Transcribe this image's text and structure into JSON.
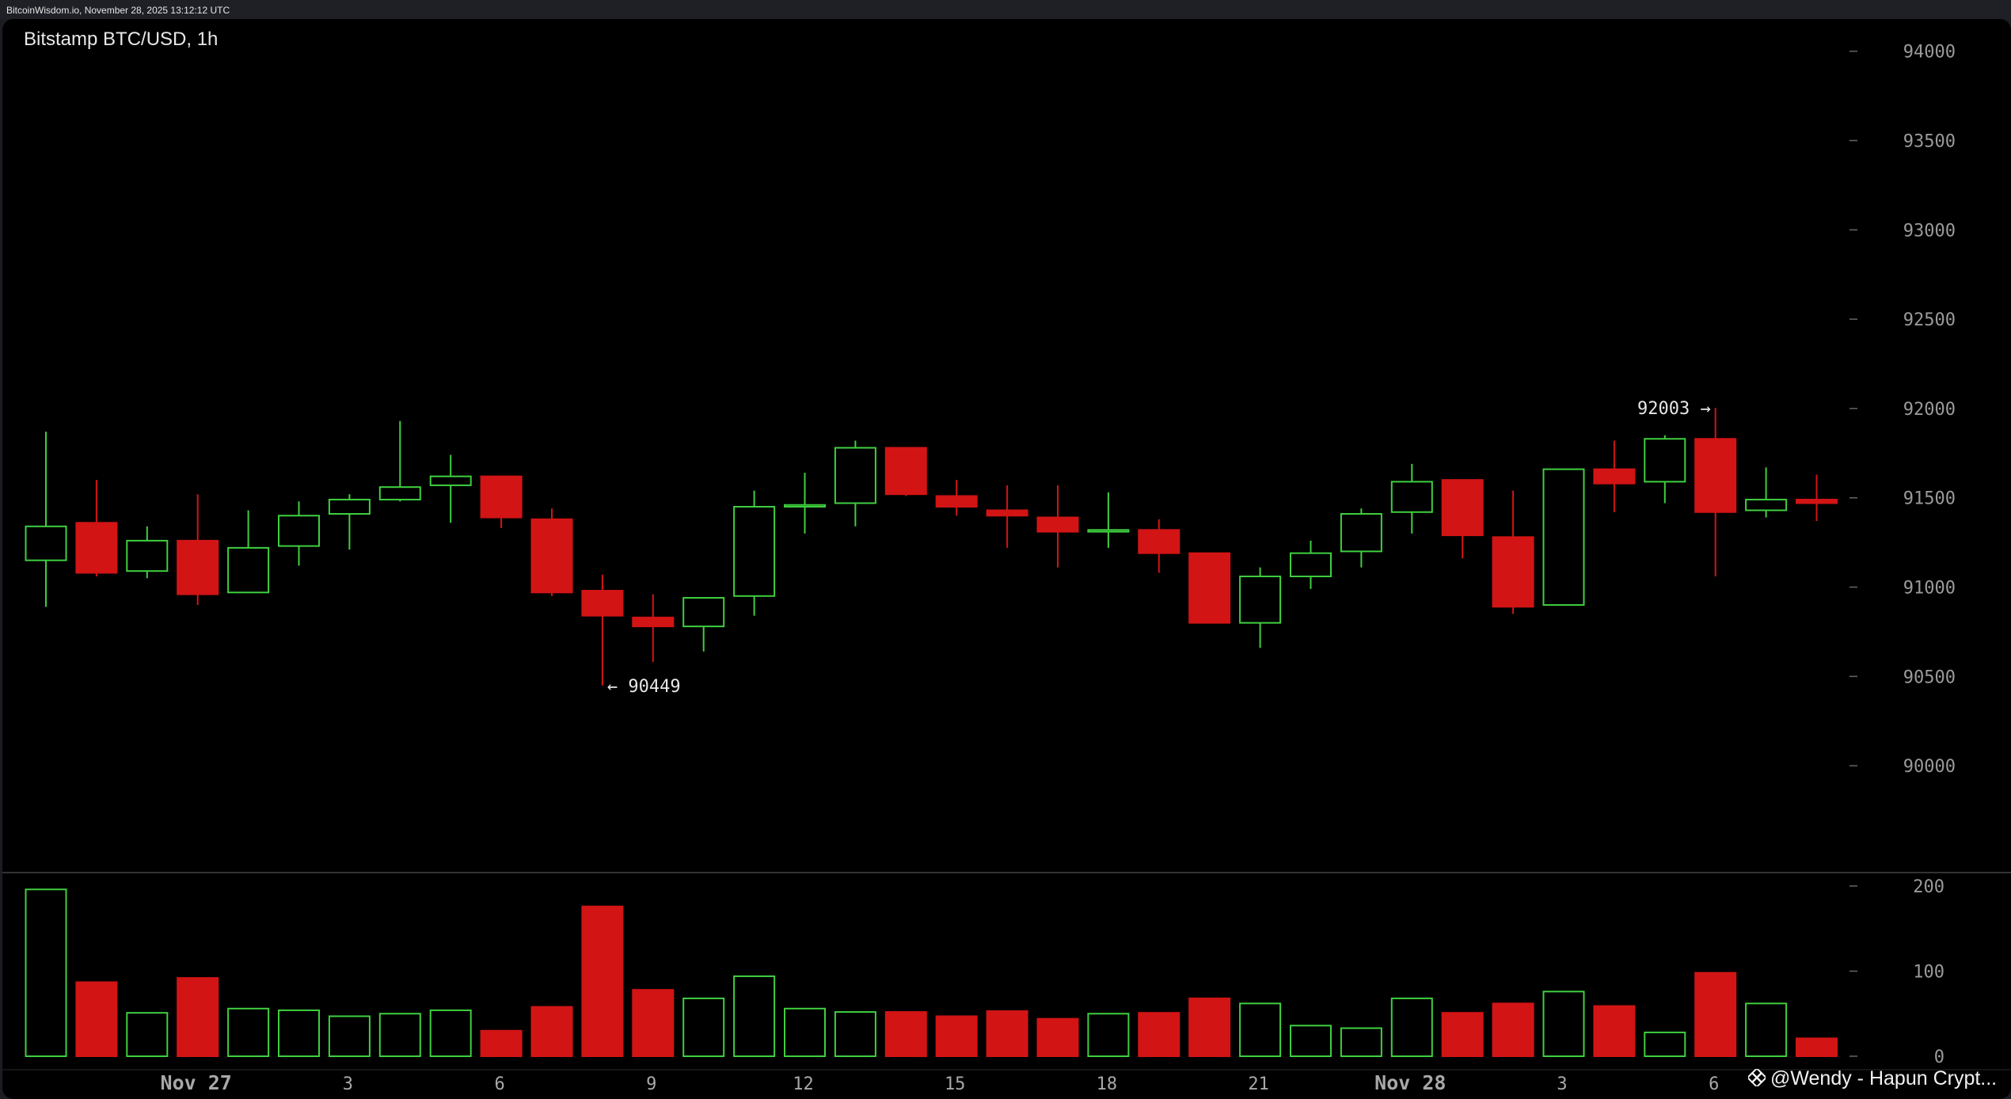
{
  "header": {
    "source_line": "BitcoinWisdom.io, November 28, 2025 13:12:12 UTC"
  },
  "chart_title": "Bitstamp BTC/USD, 1h",
  "watermark": {
    "text": "@Wendy - Hapun Crypt..."
  },
  "colors": {
    "up": "#3fcf3f",
    "down": "#d21414",
    "background": "#000000",
    "axis_text": "#9a9a9a",
    "annotation": "#e6e6e6"
  },
  "chart_data": {
    "type": "candlestick",
    "interval": "1h",
    "price_axis": {
      "ticks": [
        90000,
        90500,
        91000,
        91500,
        92000,
        92500,
        93000,
        93500,
        94000
      ]
    },
    "volume_axis": {
      "ticks": [
        0,
        100,
        200
      ]
    },
    "x_tick_labels": [
      {
        "index": 3,
        "label": "Nov 27",
        "bold": true
      },
      {
        "index": 6,
        "label": "3"
      },
      {
        "index": 9,
        "label": "6"
      },
      {
        "index": 12,
        "label": "9"
      },
      {
        "index": 15,
        "label": "12"
      },
      {
        "index": 18,
        "label": "15"
      },
      {
        "index": 21,
        "label": "18"
      },
      {
        "index": 24,
        "label": "21"
      },
      {
        "index": 27,
        "label": "Nov 28",
        "bold": true
      },
      {
        "index": 30,
        "label": "3"
      },
      {
        "index": 33,
        "label": "6"
      }
    ],
    "annotations": [
      {
        "index": 11,
        "price": 90449,
        "text": "← 90449",
        "side": "right"
      },
      {
        "index": 33,
        "price": 92003,
        "text": "92003 →",
        "side": "left"
      }
    ],
    "candles": [
      {
        "o": 91150,
        "h": 91870,
        "l": 90890,
        "c": 91340,
        "v": 196
      },
      {
        "o": 91360,
        "h": 91600,
        "l": 91060,
        "c": 91080,
        "v": 87
      },
      {
        "o": 91090,
        "h": 91340,
        "l": 91050,
        "c": 91260,
        "v": 51
      },
      {
        "o": 91260,
        "h": 91520,
        "l": 90900,
        "c": 90960,
        "v": 92
      },
      {
        "o": 90970,
        "h": 91430,
        "l": 90970,
        "c": 91220,
        "v": 56
      },
      {
        "o": 91230,
        "h": 91480,
        "l": 91120,
        "c": 91400,
        "v": 54
      },
      {
        "o": 91410,
        "h": 91520,
        "l": 91210,
        "c": 91490,
        "v": 47
      },
      {
        "o": 91490,
        "h": 91930,
        "l": 91480,
        "c": 91560,
        "v": 50
      },
      {
        "o": 91570,
        "h": 91740,
        "l": 91360,
        "c": 91620,
        "v": 54
      },
      {
        "o": 91620,
        "h": 91620,
        "l": 91330,
        "c": 91390,
        "v": 30
      },
      {
        "o": 91380,
        "h": 91440,
        "l": 90950,
        "c": 90970,
        "v": 58
      },
      {
        "o": 90980,
        "h": 91070,
        "l": 90449,
        "c": 90840,
        "v": 176
      },
      {
        "o": 90830,
        "h": 90960,
        "l": 90580,
        "c": 90780,
        "v": 78
      },
      {
        "o": 90780,
        "h": 90940,
        "l": 90640,
        "c": 90940,
        "v": 68
      },
      {
        "o": 90950,
        "h": 91540,
        "l": 90840,
        "c": 91450,
        "v": 94
      },
      {
        "o": 91450,
        "h": 91640,
        "l": 91300,
        "c": 91460,
        "v": 56
      },
      {
        "o": 91470,
        "h": 91820,
        "l": 91340,
        "c": 91780,
        "v": 52
      },
      {
        "o": 91780,
        "h": 91780,
        "l": 91510,
        "c": 91520,
        "v": 52
      },
      {
        "o": 91510,
        "h": 91600,
        "l": 91400,
        "c": 91450,
        "v": 47
      },
      {
        "o": 91430,
        "h": 91570,
        "l": 91220,
        "c": 91400,
        "v": 53
      },
      {
        "o": 91390,
        "h": 91570,
        "l": 91110,
        "c": 91310,
        "v": 44
      },
      {
        "o": 91310,
        "h": 91530,
        "l": 91220,
        "c": 91320,
        "v": 50
      },
      {
        "o": 91320,
        "h": 91380,
        "l": 91080,
        "c": 91190,
        "v": 51
      },
      {
        "o": 91190,
        "h": 91190,
        "l": 90800,
        "c": 90800,
        "v": 68
      },
      {
        "o": 90800,
        "h": 91110,
        "l": 90660,
        "c": 91060,
        "v": 62
      },
      {
        "o": 91060,
        "h": 91260,
        "l": 90990,
        "c": 91190,
        "v": 36
      },
      {
        "o": 91200,
        "h": 91440,
        "l": 91110,
        "c": 91410,
        "v": 33
      },
      {
        "o": 91420,
        "h": 91690,
        "l": 91300,
        "c": 91590,
        "v": 68
      },
      {
        "o": 91600,
        "h": 91600,
        "l": 91160,
        "c": 91290,
        "v": 51
      },
      {
        "o": 91280,
        "h": 91540,
        "l": 90850,
        "c": 90890,
        "v": 62
      },
      {
        "o": 90900,
        "h": 91660,
        "l": 90900,
        "c": 91660,
        "v": 76
      },
      {
        "o": 91660,
        "h": 91820,
        "l": 91420,
        "c": 91580,
        "v": 59
      },
      {
        "o": 91590,
        "h": 91850,
        "l": 91470,
        "c": 91830,
        "v": 28
      },
      {
        "o": 91830,
        "h": 92003,
        "l": 91060,
        "c": 91420,
        "v": 98
      },
      {
        "o": 91430,
        "h": 91670,
        "l": 91390,
        "c": 91490,
        "v": 62
      },
      {
        "o": 91490,
        "h": 91630,
        "l": 91370,
        "c": 91470,
        "v": 21
      }
    ]
  }
}
